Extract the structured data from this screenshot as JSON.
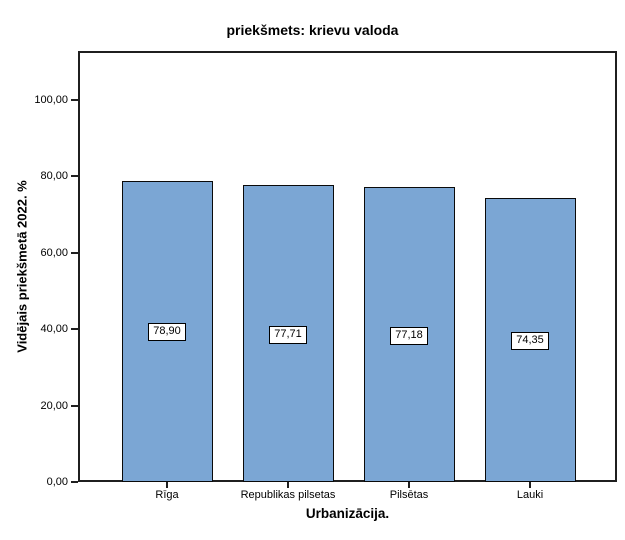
{
  "chart_data": {
    "type": "bar",
    "title": "priekšmets: krievu valoda",
    "xlabel": "Urbanizācija.",
    "ylabel": "Vidējais priekšmetā 2022. %",
    "categories": [
      "Rīga",
      "Republikas pilsetas",
      "Pilsētas",
      "Lauki"
    ],
    "values": [
      78.9,
      77.71,
      77.18,
      74.35
    ],
    "value_labels": [
      "78,90",
      "77,71",
      "77,18",
      "74,35"
    ],
    "ytick_values": [
      0,
      20,
      40,
      60,
      80,
      100
    ],
    "ytick_labels": [
      "0,00",
      "20,00",
      "40,00",
      "60,00",
      "80,00",
      "100,00"
    ],
    "ylim": [
      0,
      112.8
    ],
    "grid": false,
    "bar_color": "#7BA6D4",
    "bar_border_color": "#0A0A0A",
    "frame_color": "#1F1F1F"
  }
}
